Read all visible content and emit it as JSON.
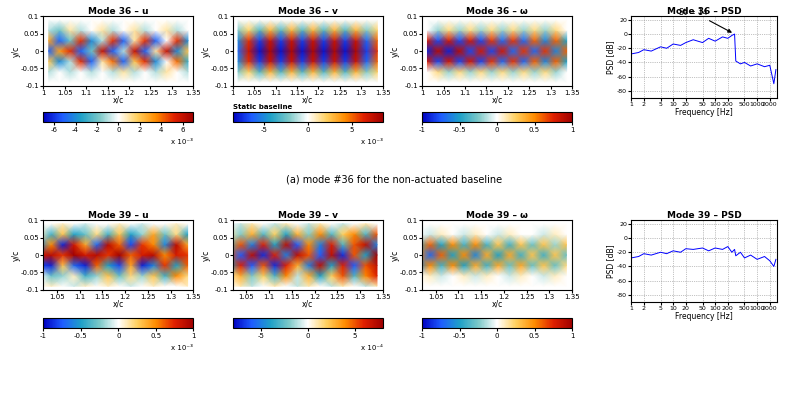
{
  "caption": "(a) mode #36 for the non-actuated baseline",
  "chart_data": [
    {
      "type": "heatmap",
      "title": "Mode 36 – u",
      "xlabel": "x/c",
      "ylabel": "y/c",
      "xlim": [
        1,
        1.35
      ],
      "ylim": [
        -0.1,
        0.1
      ],
      "xticks": [
        1,
        1.05,
        1.1,
        1.15,
        1.2,
        1.25,
        1.3,
        1.35
      ],
      "yticks": [
        -0.1,
        -0.05,
        0,
        0.05,
        0.1
      ],
      "x": [
        1.0125,
        1.0375,
        1.0625,
        1.0875,
        1.1125,
        1.1375,
        1.1625,
        1.1875,
        1.2125,
        1.2375,
        1.2625,
        1.2875,
        1.3125,
        1.3375
      ],
      "y": [
        -0.09,
        -0.06,
        -0.03,
        0,
        0.03,
        0.06,
        0.09
      ],
      "cells": [
        [
          0,
          0,
          0,
          0,
          0,
          0,
          0,
          0,
          0,
          0,
          0,
          0,
          0,
          0
        ],
        [
          -1,
          0,
          -1,
          0,
          -1,
          0,
          -1,
          1,
          -1,
          0,
          -1,
          1,
          0,
          -1
        ],
        [
          2,
          -4,
          -1,
          5,
          -5,
          1,
          4,
          -5,
          2,
          5,
          -4,
          0,
          4,
          -3
        ],
        [
          -5,
          3,
          5,
          -5,
          -2,
          6,
          -5,
          -1,
          6,
          -5,
          1,
          6,
          -4,
          2
        ],
        [
          3,
          -5,
          -2,
          5,
          -4,
          -1,
          5,
          -5,
          1,
          5,
          -5,
          0,
          5,
          -4
        ],
        [
          -1,
          -2,
          1,
          -1,
          0,
          1,
          -1,
          0,
          1,
          -1,
          0,
          1,
          -1,
          0
        ],
        [
          0,
          0,
          0,
          0,
          0,
          0,
          0,
          0,
          0,
          0,
          0,
          0,
          0,
          0
        ]
      ],
      "colorbar_range": [
        -7,
        7
      ],
      "colorbar_ticks": [
        -6,
        -4,
        -2,
        0,
        2,
        4,
        6
      ],
      "colorbar_label": "x 10⁻³"
    },
    {
      "type": "heatmap",
      "title": "Mode 36 – v",
      "xlabel": "x/c",
      "ylabel": "y/c",
      "note": "Static baseline",
      "xlim": [
        1,
        1.35
      ],
      "ylim": [
        -0.1,
        0.1
      ],
      "xticks": [
        1,
        1.05,
        1.1,
        1.15,
        1.2,
        1.25,
        1.3,
        1.35
      ],
      "yticks": [
        -0.1,
        -0.05,
        0,
        0.05,
        0.1
      ],
      "x": [
        1.0125,
        1.0375,
        1.0625,
        1.0875,
        1.1125,
        1.1375,
        1.1625,
        1.1875,
        1.2125,
        1.2375,
        1.2625,
        1.2875,
        1.3125,
        1.3375
      ],
      "y": [
        -0.09,
        -0.06,
        -0.03,
        0,
        0.03,
        0.06,
        0.09
      ],
      "cells": [
        [
          0,
          0,
          0,
          0,
          0,
          0,
          0,
          0,
          0,
          0,
          0,
          0,
          0,
          0
        ],
        [
          -2,
          2,
          -3,
          3,
          -3,
          3,
          -3,
          3,
          -3,
          3,
          -3,
          3,
          -2,
          2
        ],
        [
          -5,
          6,
          -7,
          7,
          -7,
          7,
          -7,
          7,
          -7,
          7,
          -7,
          7,
          -6,
          5
        ],
        [
          -6,
          7,
          -8,
          8,
          -8,
          8,
          -8,
          8,
          -8,
          8,
          -8,
          8,
          -7,
          6
        ],
        [
          -5,
          6,
          -7,
          7,
          -7,
          7,
          -7,
          7,
          -7,
          7,
          -7,
          7,
          -6,
          5
        ],
        [
          -2,
          2,
          -3,
          3,
          -3,
          3,
          -3,
          3,
          -3,
          3,
          -3,
          3,
          -2,
          2
        ],
        [
          0,
          0,
          0,
          0,
          0,
          0,
          0,
          0,
          0,
          0,
          0,
          0,
          0,
          0
        ]
      ],
      "colorbar_range": [
        -8.5,
        8.5
      ],
      "colorbar_ticks": [
        -5,
        0,
        5
      ],
      "colorbar_label": "x 10⁻³"
    },
    {
      "type": "heatmap",
      "title": "Mode 36 – ω",
      "xlabel": "x/c",
      "ylabel": "y/c",
      "xlim": [
        1,
        1.35
      ],
      "ylim": [
        -0.1,
        0.1
      ],
      "xticks": [
        1,
        1.05,
        1.1,
        1.15,
        1.2,
        1.25,
        1.3,
        1.35
      ],
      "yticks": [
        -0.1,
        -0.05,
        0,
        0.05,
        0.1
      ],
      "x": [
        1.0125,
        1.0375,
        1.0625,
        1.0875,
        1.1125,
        1.1375,
        1.1625,
        1.1875,
        1.2125,
        1.2375,
        1.2625,
        1.2875,
        1.3125,
        1.3375
      ],
      "y": [
        -0.09,
        -0.06,
        -0.03,
        0,
        0.03,
        0.06,
        0.09
      ],
      "cells": [
        [
          0,
          0,
          0,
          0,
          0,
          0,
          0,
          0,
          0,
          0,
          0,
          0,
          0,
          0
        ],
        [
          0,
          0.2,
          -0.2,
          0.2,
          -0.2,
          0.2,
          -0.2,
          0.2,
          -0.2,
          0.2,
          -0.2,
          0.2,
          -0.2,
          0
        ],
        [
          0.8,
          -0.8,
          0.8,
          -0.8,
          0.8,
          -0.8,
          0.7,
          -0.7,
          0.7,
          -0.7,
          0.6,
          -0.6,
          0.6,
          -0.5
        ],
        [
          -0.9,
          0.9,
          -0.9,
          0.9,
          -0.8,
          0.8,
          -0.8,
          0.8,
          -0.7,
          0.7,
          -0.7,
          0.7,
          -0.6,
          0.6
        ],
        [
          0.8,
          -0.8,
          0.8,
          -0.8,
          0.8,
          -0.8,
          0.7,
          -0.7,
          0.7,
          -0.7,
          0.6,
          -0.6,
          0.6,
          -0.5
        ],
        [
          0,
          -0.2,
          0.2,
          -0.2,
          0.2,
          -0.2,
          0.2,
          -0.2,
          0.2,
          -0.2,
          0.2,
          -0.2,
          0.2,
          0
        ],
        [
          0,
          0,
          0,
          0,
          0,
          0,
          0,
          0,
          0,
          0,
          0,
          0,
          0,
          0
        ]
      ],
      "colorbar_range": [
        -1,
        1
      ],
      "colorbar_ticks": [
        -1,
        -0.5,
        0,
        0.5,
        1
      ]
    },
    {
      "type": "line",
      "title": "Mode 36 – PSD",
      "xlabel": "Frequency [Hz]",
      "ylabel": "PSD [dB]",
      "log": "x",
      "grid": true,
      "color": "#0000ff",
      "xlim": [
        1,
        3000
      ],
      "ylim": [
        -90,
        25
      ],
      "xticks": [
        1,
        2,
        5,
        10,
        20,
        50,
        100,
        200,
        500,
        1000,
        2000
      ],
      "yticks": [
        -80,
        -60,
        -40,
        -20,
        0,
        20
      ],
      "x": [
        1,
        1.5,
        2,
        3,
        5,
        7,
        10,
        15,
        20,
        30,
        50,
        70,
        100,
        150,
        200,
        250,
        290,
        310,
        400,
        500,
        700,
        1000,
        1500,
        2000,
        2500,
        2800
      ],
      "values": [
        -28,
        -26,
        -22,
        -24,
        -18,
        -20,
        -14,
        -16,
        -12,
        -8,
        -12,
        -6,
        -10,
        -4,
        -6,
        -2,
        0,
        -38,
        -42,
        -40,
        -45,
        -42,
        -46,
        -44,
        -70,
        -50
      ],
      "annotation": {
        "text": "St = 14",
        "x": 290,
        "y": 0
      }
    },
    {
      "type": "heatmap",
      "title": "Mode 39 – u",
      "xlabel": "x/c",
      "ylabel": "y/c",
      "xlim": [
        1.02,
        1.35
      ],
      "ylim": [
        -0.1,
        0.1
      ],
      "xticks": [
        1.05,
        1.1,
        1.15,
        1.2,
        1.25,
        1.3,
        1.35
      ],
      "yticks": [
        -0.1,
        -0.05,
        0,
        0.05,
        0.1
      ],
      "x": [
        1.0125,
        1.0375,
        1.0625,
        1.0875,
        1.1125,
        1.1375,
        1.1625,
        1.1875,
        1.2125,
        1.2375,
        1.2625,
        1.2875,
        1.3125,
        1.3375
      ],
      "y": [
        -0.09,
        -0.06,
        -0.03,
        0,
        0.03,
        0.06,
        0.09
      ],
      "cells": [
        [
          0,
          0.1,
          0,
          -0.1,
          0.1,
          0,
          0.1,
          0,
          -0.1,
          0,
          0.1,
          0,
          0,
          0.1
        ],
        [
          0,
          -0.3,
          -0.2,
          0.1,
          -0.4,
          -0.2,
          0.3,
          -0.3,
          0.2,
          -0.2,
          0.3,
          -0.4,
          0.5,
          0.2
        ],
        [
          -0.8,
          -0.9,
          0.3,
          -0.7,
          -0.9,
          0.6,
          -0.5,
          -0.8,
          0.4,
          -0.9,
          -0.6,
          0.7,
          -0.5,
          0.6
        ],
        [
          0.8,
          0.9,
          0.7,
          1,
          0.8,
          0.9,
          0.7,
          1,
          0.6,
          0.8,
          0.9,
          0.5,
          0.8,
          0.7
        ],
        [
          -0.6,
          0.5,
          -0.9,
          0.8,
          0.4,
          -0.7,
          0.9,
          0.6,
          -0.8,
          0.7,
          0.5,
          -0.6,
          0.9,
          0.4
        ],
        [
          0.1,
          -0.4,
          0.3,
          -0.5,
          -0.3,
          0.2,
          -0.4,
          0.3,
          -0.5,
          -0.2,
          0.4,
          -0.3,
          0.2,
          -0.5
        ],
        [
          0,
          0,
          0.1,
          0,
          -0.1,
          0,
          0,
          0.1,
          0,
          -0.1,
          0,
          0,
          0.1,
          0
        ]
      ],
      "colorbar_range": [
        -1,
        1
      ],
      "colorbar_ticks": [
        -1,
        -0.5,
        0,
        0.5,
        1
      ],
      "colorbar_label": "x 10⁻³"
    },
    {
      "type": "heatmap",
      "title": "Mode 39 – v",
      "xlabel": "x/c",
      "ylabel": "y/c",
      "xlim": [
        1.02,
        1.35
      ],
      "ylim": [
        -0.1,
        0.1
      ],
      "xticks": [
        1.05,
        1.1,
        1.15,
        1.2,
        1.25,
        1.3,
        1.35
      ],
      "yticks": [
        -0.1,
        -0.05,
        0,
        0.05,
        0.1
      ],
      "x": [
        1.0125,
        1.0375,
        1.0625,
        1.0875,
        1.1125,
        1.1375,
        1.1625,
        1.1875,
        1.2125,
        1.2375,
        1.2625,
        1.2875,
        1.3125,
        1.3375
      ],
      "y": [
        -0.09,
        -0.06,
        -0.03,
        0,
        0.03,
        0.06,
        0.09
      ],
      "cells": [
        [
          0,
          1,
          -1,
          0,
          1,
          0,
          -1,
          1,
          0,
          -1,
          1,
          0,
          -1,
          1
        ],
        [
          1,
          3,
          -2,
          2,
          -3,
          4,
          -1,
          3,
          -4,
          2,
          5,
          -3,
          4,
          6
        ],
        [
          -4,
          6,
          -6,
          5,
          -7,
          6,
          3,
          -5,
          7,
          -4,
          6,
          -6,
          5,
          7
        ],
        [
          5,
          -6,
          7,
          -7,
          6,
          -5,
          7,
          5,
          -6,
          7,
          -7,
          5,
          -4,
          8
        ],
        [
          -3,
          5,
          -5,
          6,
          -4,
          7,
          -6,
          4,
          -5,
          6,
          -3,
          5,
          7,
          -5
        ],
        [
          1,
          -2,
          3,
          -3,
          2,
          -4,
          3,
          -2,
          4,
          -3,
          2,
          4,
          -3,
          5
        ],
        [
          0,
          -1,
          1,
          0,
          -1,
          1,
          0,
          -1,
          1,
          0,
          -1,
          0,
          1,
          0
        ]
      ],
      "colorbar_range": [
        -8,
        8
      ],
      "colorbar_ticks": [
        -5,
        0,
        5
      ],
      "colorbar_label": "x 10⁻⁴"
    },
    {
      "type": "heatmap",
      "title": "Mode 39 – ω",
      "xlabel": "x/c",
      "ylabel": "y/c",
      "xlim": [
        1.02,
        1.35
      ],
      "ylim": [
        -0.1,
        0.1
      ],
      "xticks": [
        1.05,
        1.1,
        1.15,
        1.2,
        1.25,
        1.3,
        1.35
      ],
      "yticks": [
        -0.1,
        -0.05,
        0,
        0.05,
        0.1
      ],
      "x": [
        1.0125,
        1.0375,
        1.0625,
        1.0875,
        1.1125,
        1.1375,
        1.1625,
        1.1875,
        1.2125,
        1.2375,
        1.2625,
        1.2875,
        1.3125,
        1.3375
      ],
      "y": [
        -0.09,
        -0.06,
        -0.03,
        0,
        0.03,
        0.06,
        0.09
      ],
      "cells": [
        [
          0,
          0,
          0,
          0,
          0,
          0,
          0,
          0,
          0,
          0,
          0,
          0,
          0,
          0
        ],
        [
          0,
          0.1,
          -0.1,
          0,
          0.1,
          -0.1,
          0.1,
          0,
          -0.1,
          0.1,
          0,
          -0.1,
          0.1,
          0
        ],
        [
          -0.6,
          0.5,
          -0.4,
          0.5,
          -0.5,
          0.4,
          -0.4,
          0.4,
          -0.3,
          0.4,
          -0.3,
          0.3,
          -0.3,
          0.2
        ],
        [
          0.5,
          -0.7,
          0.6,
          -0.5,
          0.5,
          -0.6,
          0.4,
          -0.5,
          0.4,
          -0.4,
          0.3,
          -0.4,
          0.3,
          -0.3
        ],
        [
          -0.4,
          0.6,
          -0.5,
          0.5,
          -0.4,
          0.5,
          -0.4,
          0.3,
          -0.4,
          0.3,
          -0.3,
          0.3,
          -0.2,
          0.3
        ],
        [
          0,
          -0.1,
          0.1,
          0,
          -0.1,
          0.1,
          0,
          -0.1,
          0.1,
          0,
          0,
          -0.1,
          0.1,
          0
        ],
        [
          0,
          0,
          0,
          0,
          0,
          0,
          0,
          0,
          0,
          0,
          0,
          0,
          0,
          0
        ]
      ],
      "colorbar_range": [
        -1,
        1
      ],
      "colorbar_ticks": [
        -1,
        -0.5,
        0,
        0.5,
        1
      ]
    },
    {
      "type": "line",
      "title": "Mode 39 – PSD",
      "xlabel": "Frequency [Hz]",
      "ylabel": "PSD [dB]",
      "log": "x",
      "grid": true,
      "color": "#0000ff",
      "xlim": [
        1,
        3000
      ],
      "ylim": [
        -90,
        25
      ],
      "xticks": [
        1,
        2,
        5,
        10,
        20,
        50,
        100,
        200,
        500,
        1000,
        2000
      ],
      "yticks": [
        -80,
        -60,
        -40,
        -20,
        0,
        20
      ],
      "x": [
        1,
        1.5,
        2,
        3,
        5,
        7,
        10,
        15,
        20,
        30,
        50,
        70,
        100,
        150,
        200,
        250,
        290,
        310,
        400,
        500,
        700,
        1000,
        1500,
        2000,
        2500,
        2800
      ],
      "values": [
        -28,
        -26,
        -22,
        -24,
        -20,
        -22,
        -18,
        -20,
        -15,
        -16,
        -14,
        -18,
        -14,
        -16,
        -12,
        -20,
        -16,
        -25,
        -20,
        -28,
        -24,
        -30,
        -26,
        -32,
        -40,
        -30
      ]
    }
  ]
}
